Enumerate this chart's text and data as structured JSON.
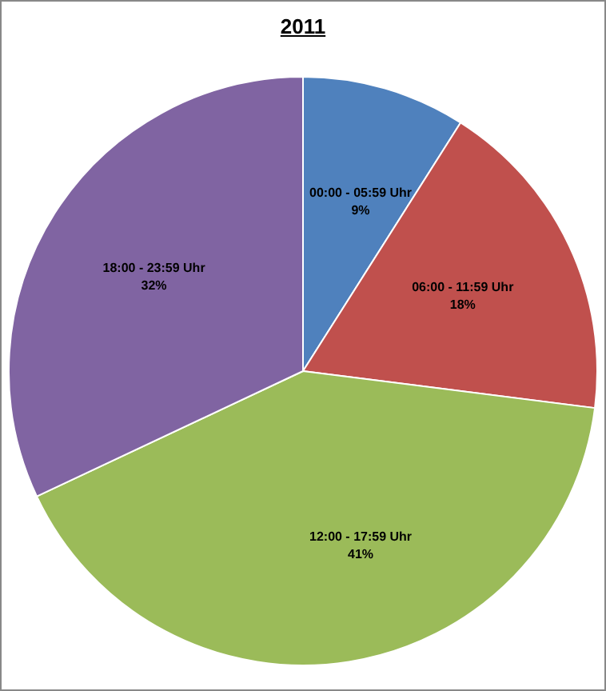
{
  "chart_data": {
    "type": "pie",
    "title": "2011",
    "categories": [
      "00:00 - 05:59 Uhr",
      "06:00 - 11:59 Uhr",
      "12:00 - 17:59 Uhr",
      "18:00 - 23:59 Uhr"
    ],
    "values": [
      9,
      18,
      41,
      32
    ],
    "colors": [
      "#4f81bd",
      "#c0504d",
      "#9bbb59",
      "#8064a2"
    ],
    "value_labels": [
      "9%",
      "18%",
      "41%",
      "32%"
    ],
    "legend": false
  }
}
